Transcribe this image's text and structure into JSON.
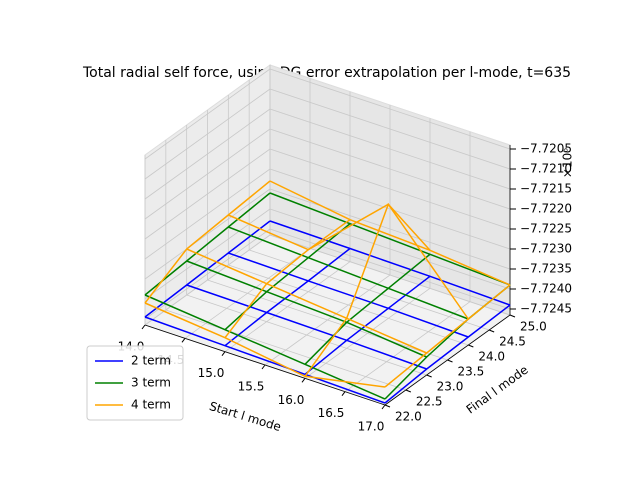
{
  "chart_data": {
    "type": "wireframe3d",
    "title": "Total radial self force, using DG error extrapolation per l-mode, t=635",
    "xlabel": "Start l mode",
    "ylabel": "Final l mode",
    "z_offset_label": "×10⁶",
    "x": [
      14,
      15,
      16,
      17
    ],
    "y": [
      22,
      23,
      24,
      25
    ],
    "xlim": [
      14,
      17
    ],
    "ylim": [
      22,
      25
    ],
    "zlim": [
      -7724650,
      -7720400
    ],
    "xticks": [
      {
        "value": 14,
        "label": "14.0"
      },
      14.5,
      {
        "value": 15,
        "label": "15.0"
      },
      15.5,
      {
        "value": 16,
        "label": "16.0"
      },
      16.5,
      {
        "value": 17,
        "label": "17.0"
      }
    ],
    "yticks": [
      {
        "value": 22,
        "label": "22.0"
      },
      22.5,
      {
        "value": 23,
        "label": "23.0"
      },
      23.5,
      {
        "value": 24,
        "label": "24.0"
      },
      24.5,
      {
        "value": 25,
        "label": "25.0"
      }
    ],
    "zticks": [
      {
        "value": -7724500,
        "label": "−7.7245"
      },
      {
        "value": -7724000,
        "label": "−7.7240"
      },
      {
        "value": -7723500,
        "label": "−7.7235"
      },
      {
        "value": -7723000,
        "label": "−7.7230"
      },
      {
        "value": -7722500,
        "label": "−7.7225"
      },
      {
        "value": -7722000,
        "label": "−7.7220"
      },
      {
        "value": -7721500,
        "label": "−7.7215"
      },
      {
        "value": -7721000,
        "label": "−7.7210"
      },
      {
        "value": -7720500,
        "label": "−7.7205"
      }
    ],
    "grid": true,
    "legend": "lower left",
    "series": [
      {
        "name": "2 term",
        "color": "#0000ff",
        "z": [
          [
            -7724450,
            -7724400,
            -7724350,
            -7724300
          ],
          [
            -7724500,
            -7724420,
            -7724380,
            -7724320
          ],
          [
            -7724550,
            -7724450,
            -7724400,
            -7724350
          ],
          [
            -7724600,
            -7724500,
            -7724450,
            -7724400
          ]
        ]
      },
      {
        "name": "3 term",
        "color": "#008000",
        "z": [
          [
            -7723900,
            -7723800,
            -7723700,
            -7723600
          ],
          [
            -7724100,
            -7723900,
            -7723800,
            -7723700
          ],
          [
            -7724300,
            -7724000,
            -7723900,
            -7723800
          ],
          [
            -7724500,
            -7724200,
            -7724000,
            -7723900
          ]
        ]
      },
      {
        "name": "4 term",
        "color": "#ffa500",
        "z": [
          [
            -7724100,
            -7723500,
            -7723400,
            -7723300
          ],
          [
            -7724300,
            -7723700,
            -7723600,
            -7723600
          ],
          [
            -7724600,
            -7723900,
            -7721800,
            -7723700
          ],
          [
            -7724200,
            -7724100,
            -7724000,
            -7723900
          ]
        ]
      }
    ]
  }
}
